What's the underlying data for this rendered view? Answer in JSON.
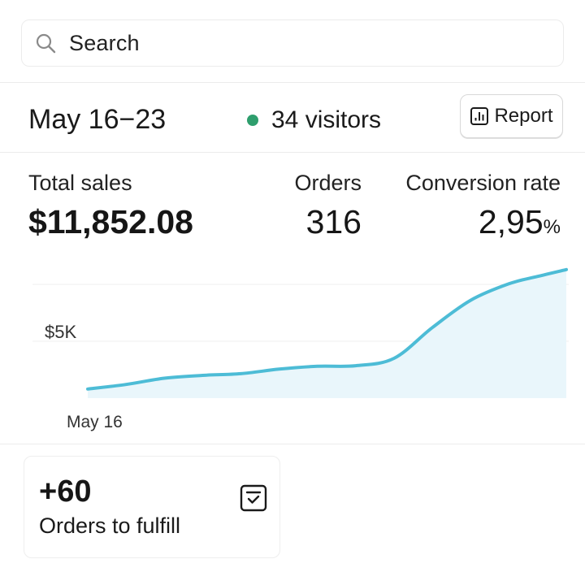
{
  "search": {
    "label": "Search",
    "icon": "search-icon"
  },
  "period": {
    "date_range": "May 16−23",
    "visitors": "34 visitors",
    "visitors_dot_color": "#2e9e6d",
    "report_label": "Report",
    "report_icon": "report-icon"
  },
  "metrics": {
    "total_sales": {
      "label": "Total sales",
      "value": "$11,852.08"
    },
    "orders": {
      "label": "Orders",
      "value": "316"
    },
    "conversion_rate": {
      "label": "Conversion rate",
      "value": "2,95",
      "unit": "%"
    }
  },
  "chart_data": {
    "type": "area",
    "y_tick_label": "$5K",
    "x_tick_label": "May 16",
    "line_color": "#4dbcd6",
    "fill_color": "#e9f6fb",
    "x": [
      0,
      0.08,
      0.16,
      0.24,
      0.32,
      0.4,
      0.48,
      0.56,
      0.64,
      0.72,
      0.8,
      0.88,
      0.94,
      1.0
    ],
    "values": [
      800,
      1200,
      1750,
      2000,
      2150,
      2550,
      2800,
      2850,
      3500,
      6200,
      8600,
      10050,
      10700,
      11300
    ],
    "ylim": [
      0,
      12000
    ],
    "gridlines": [
      5000,
      10000
    ],
    "grid": true
  },
  "card": {
    "value": "+60",
    "label": "Orders to fulfill",
    "icon": "checklist-icon"
  }
}
